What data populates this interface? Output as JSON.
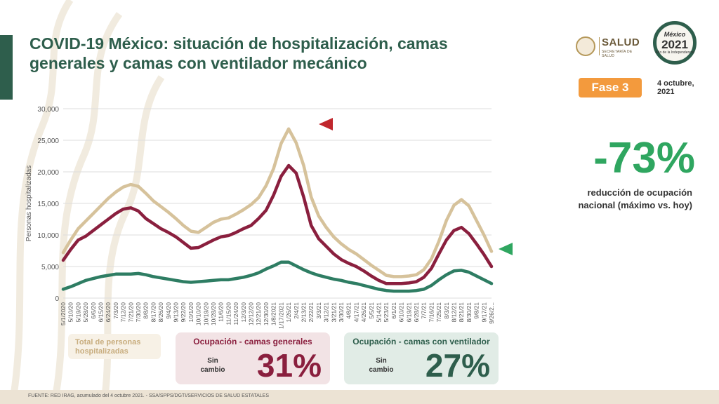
{
  "title_lines": [
    "COVID-19 México: situación de hospitalización, camas",
    "generales y camas con ventilador mecánico"
  ],
  "logos": {
    "salud_name": "SALUD",
    "salud_sub": "SECRETARÍA DE SALUD",
    "anniv_line1": "México",
    "anniv_year": "2021",
    "anniv_line3": "Año de la Independencia"
  },
  "phase_label": "Fase 3",
  "date_line1": "4 octubre,",
  "date_line2": "2021",
  "reduction": {
    "value": "-73%",
    "line1": "reducción de ocupación",
    "line2": "nacional (máximo vs. hoy)",
    "color": "#2fa660"
  },
  "legend": {
    "total_line1": "Total de personas",
    "total_line2": "hospitalizadas"
  },
  "panel_general": {
    "header": "Ocupación - camas generales",
    "status_line1": "Sin",
    "status_line2": "cambio",
    "value": "31%"
  },
  "panel_ventilator": {
    "header": "Ocupación - camas con ventilador",
    "status_line1": "Sin",
    "status_line2": "cambio",
    "value": "27%"
  },
  "footer": "FUENTE: RED IRAG, acumulado del 4 octubre 2021. - SSA/SPPS/DGTI/SERVICIOS DE SALUD ESTATALES",
  "chart_data": {
    "type": "line",
    "ylabel": "Personas hospitalizadas",
    "ylim": [
      0,
      30000
    ],
    "yticks": [
      "0",
      "5,000",
      "10,000",
      "15,000",
      "20,000",
      "25,000",
      "30,000"
    ],
    "ytick_values": [
      0,
      5000,
      10000,
      15000,
      20000,
      25000,
      30000
    ],
    "x_tick_labels": [
      "5/1/2020",
      "5/10/20",
      "5/19/20",
      "5/28/20",
      "6/6/20",
      "6/15/20",
      "6/24/20",
      "7/3/20",
      "7/12/20",
      "7/21/20",
      "7/30/20",
      "8/8/20",
      "8/17/20",
      "8/26/20",
      "9/4/20",
      "9/13/20",
      "9/22/20",
      "10/1/20",
      "10/10/20",
      "10/19/20",
      "10/28/20",
      "11/6/20",
      "11/15/20",
      "11/24/20",
      "12/3/20",
      "12/12/20",
      "12/21/20",
      "12/30/20",
      "1/8/2021",
      "1/17/2021",
      "1/26/21",
      "2/4/21",
      "2/13/21",
      "2/22/21",
      "3/3/21",
      "3/12/21",
      "3/21/21",
      "3/30/21",
      "4/8/21",
      "4/17/21",
      "4/26/21",
      "5/5/21",
      "5/14/21",
      "5/23/21",
      "6/1/21",
      "6/10/21",
      "6/19/21",
      "6/28/21",
      "7/7/21",
      "7/16/21",
      "7/25/21",
      "8/3/21",
      "8/12/21",
      "8/21/21",
      "8/30/21",
      "9/8/21",
      "9/17/21",
      "9/26/2..."
    ],
    "series": [
      {
        "role": "total",
        "color": "#d6c29b",
        "values": [
          7200,
          9200,
          11000,
          12200,
          13400,
          14600,
          15800,
          16800,
          17600,
          18000,
          17700,
          16600,
          15400,
          14500,
          13600,
          12600,
          11500,
          10600,
          10400,
          11200,
          12000,
          12500,
          12700,
          13300,
          14000,
          14800,
          15900,
          17800,
          20500,
          24500,
          26800,
          24600,
          21000,
          16000,
          13000,
          11200,
          9700,
          8600,
          7700,
          7000,
          6100,
          5200,
          4400,
          3600,
          3400,
          3400,
          3500,
          3700,
          4500,
          6200,
          9000,
          12300,
          14700,
          15600,
          14600,
          12300,
          10000,
          7400
        ]
      },
      {
        "role": "general",
        "color": "#8a1f3e",
        "values": [
          6000,
          7700,
          9200,
          9800,
          10700,
          11600,
          12500,
          13400,
          14100,
          14300,
          13800,
          12600,
          11800,
          11000,
          10400,
          9700,
          8800,
          7900,
          8000,
          8600,
          9200,
          9700,
          9900,
          10400,
          11000,
          11500,
          12600,
          13900,
          16300,
          19300,
          21000,
          19800,
          16000,
          11500,
          9400,
          8200,
          7000,
          6100,
          5500,
          5000,
          4300,
          3500,
          2800,
          2300,
          2300,
          2300,
          2400,
          2600,
          3300,
          4700,
          7000,
          9200,
          10700,
          11200,
          10200,
          8600,
          6900,
          5000
        ]
      },
      {
        "role": "ventilator",
        "color": "#2e7d63",
        "values": [
          1400,
          1800,
          2300,
          2800,
          3100,
          3400,
          3600,
          3800,
          3800,
          3800,
          3900,
          3700,
          3400,
          3200,
          3000,
          2800,
          2600,
          2500,
          2600,
          2700,
          2800,
          2900,
          2900,
          3100,
          3300,
          3600,
          4000,
          4600,
          5100,
          5700,
          5700,
          5100,
          4500,
          4000,
          3600,
          3300,
          3000,
          2800,
          2500,
          2300,
          2000,
          1700,
          1400,
          1200,
          1100,
          1100,
          1100,
          1200,
          1400,
          2000,
          2900,
          3700,
          4300,
          4400,
          4100,
          3500,
          2900,
          2300
        ]
      }
    ],
    "markers": [
      {
        "shape": "left-triangle",
        "color": "#c0272d",
        "near": "peak"
      },
      {
        "shape": "left-triangle",
        "color": "#2fa660",
        "near": "latest"
      }
    ],
    "grid": true
  }
}
